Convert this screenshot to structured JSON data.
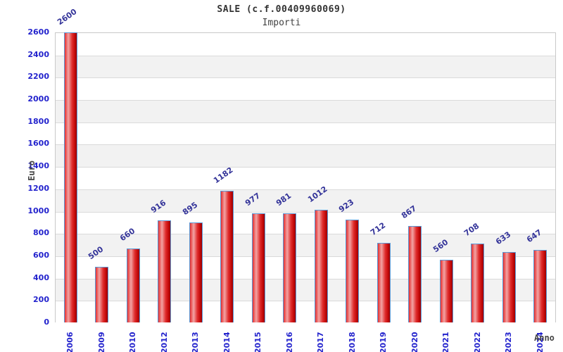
{
  "title": "SALE (c.f.00409960069)",
  "subtitle": "Importi",
  "chart_data": {
    "type": "bar",
    "title": "SALE (c.f.00409960069)",
    "subtitle": "Importi",
    "categories": [
      "2006",
      "2009",
      "2010",
      "2012",
      "2013",
      "2014",
      "2015",
      "2016",
      "2017",
      "2018",
      "2019",
      "2020",
      "2021",
      "2022",
      "2023",
      "2024"
    ],
    "values": [
      2600,
      500,
      660,
      916,
      895,
      1182,
      977,
      981,
      1012,
      923,
      712,
      867,
      560,
      708,
      633,
      647
    ],
    "xlabel": "Anno",
    "ylabel": "Euro",
    "ylim": [
      0,
      2600
    ],
    "ytick_step": 200,
    "grid": "horizontal alternating bands",
    "legend": "none",
    "bar_labels_rotated_deg": -35,
    "x_labels_rotated_deg": -90
  },
  "colors": {
    "tick_label_blue": "#2323cd",
    "value_label_navy": "#333399",
    "bar_border_blue": "#5b99d6",
    "bar_red_edge": "#e62e2e",
    "bar_red_highlight": "#f2a4a4",
    "bar_red_mid": "#df2c2c",
    "bar_red_dark": "#c40b0b",
    "bar_red_darkest": "#9a0000",
    "band_gray": "#f2f2f2",
    "band_white": "#ffffff",
    "grid_line_gray": "#dadada",
    "plot_border_gray": "#c9c9c9",
    "title_color": "#333333",
    "axis_title_color": "#444444"
  }
}
